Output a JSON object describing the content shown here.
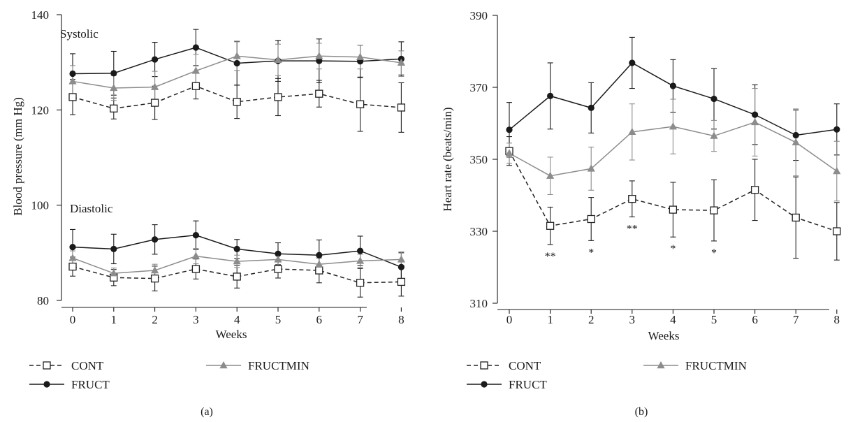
{
  "colors": {
    "CONT": "#222222",
    "FRUCT": "#1a1a1a",
    "FRUCTMIN": "#8c8c8c"
  },
  "legend_labels": {
    "CONT": "CONT",
    "FRUCT": "FRUCT",
    "FRUCTMIN": "FRUCTMIN"
  },
  "chart_data": [
    {
      "type": "line",
      "panel_label": "(a)",
      "xlabel": "Weeks",
      "ylabel": "Blood pressure (mm Hg)",
      "x": [
        0,
        1,
        2,
        3,
        4,
        5,
        6,
        7,
        8
      ],
      "xticks": [
        "0",
        "1",
        "2",
        "3",
        "4",
        "5",
        "6",
        "7",
        "8"
      ],
      "ylim": [
        80,
        140
      ],
      "yticks": [
        80,
        100,
        120,
        140
      ],
      "annotations": [
        "Systolic",
        "Diastolic"
      ],
      "legend_position": "bottom",
      "series": [
        {
          "name": "CONT",
          "group": "Systolic",
          "marker": "open-square",
          "dash": "dashed",
          "values": [
            122.7,
            120.3,
            121.5,
            125.0,
            121.7,
            122.7,
            123.4,
            121.2,
            120.5
          ],
          "err": [
            3.7,
            2.2,
            3.5,
            2.7,
            3.5,
            3.9,
            2.8,
            5.7,
            5.2
          ]
        },
        {
          "name": "FRUCT",
          "group": "Systolic",
          "marker": "filled-circle",
          "dash": "solid",
          "values": [
            127.6,
            127.7,
            130.6,
            133.1,
            129.8,
            130.3,
            130.3,
            130.2,
            130.7
          ],
          "err": [
            4.2,
            4.6,
            3.6,
            3.8,
            4.6,
            4.3,
            4.6,
            3.4,
            3.6
          ]
        },
        {
          "name": "FRUCTMIN",
          "group": "Systolic",
          "marker": "filled-triangle",
          "dash": "solid",
          "values": [
            126.0,
            124.6,
            124.8,
            128.2,
            131.3,
            130.5,
            131.3,
            131.1,
            129.9
          ],
          "err": [
            3.3,
            2.6,
            3.3,
            3.5,
            3.0,
            3.3,
            2.7,
            2.5,
            2.5
          ]
        },
        {
          "name": "CONT",
          "group": "Diastolic",
          "marker": "open-square",
          "dash": "dashed",
          "values": [
            87.1,
            84.8,
            84.6,
            86.6,
            85.0,
            86.6,
            86.3,
            83.7,
            83.9
          ],
          "err": [
            2.0,
            1.7,
            2.6,
            2.1,
            2.4,
            1.9,
            2.6,
            3.0,
            3.0
          ]
        },
        {
          "name": "FRUCT",
          "group": "Diastolic",
          "marker": "filled-circle",
          "dash": "solid",
          "values": [
            91.2,
            90.8,
            92.8,
            93.7,
            90.8,
            89.8,
            89.5,
            90.4,
            87.0
          ],
          "err": [
            3.7,
            3.1,
            3.1,
            3.0,
            2.0,
            2.3,
            3.2,
            3.1,
            3.0
          ]
        },
        {
          "name": "FRUCTMIN",
          "group": "Diastolic",
          "marker": "filled-triangle",
          "dash": "solid",
          "values": [
            88.9,
            85.7,
            86.3,
            89.3,
            88.2,
            88.6,
            87.6,
            88.3,
            88.6
          ],
          "err": [
            1.5,
            1.1,
            1.3,
            1.6,
            1.3,
            1.4,
            1.3,
            1.4,
            1.6
          ]
        }
      ]
    },
    {
      "type": "line",
      "panel_label": "(b)",
      "xlabel": "Weeks",
      "ylabel": "Heart rate (beats/min)",
      "x": [
        0,
        1,
        2,
        3,
        4,
        5,
        6,
        7,
        8
      ],
      "xticks": [
        "0",
        "1",
        "2",
        "3",
        "4",
        "5",
        "6",
        "7",
        "8"
      ],
      "ylim": [
        310,
        390
      ],
      "yticks": [
        310,
        330,
        350,
        370,
        390
      ],
      "legend_position": "bottom",
      "significance": [
        {
          "x": 1,
          "label": "**"
        },
        {
          "x": 2,
          "label": "*"
        },
        {
          "x": 3,
          "label": "**"
        },
        {
          "x": 4,
          "label": "*"
        },
        {
          "x": 5,
          "label": "*"
        }
      ],
      "series": [
        {
          "name": "CONT",
          "marker": "open-square",
          "dash": "dashed",
          "values": [
            352.3,
            331.5,
            333.4,
            339.0,
            336.0,
            335.8,
            341.5,
            333.8,
            330.0
          ],
          "err": [
            4.0,
            5.2,
            6.0,
            5.0,
            7.6,
            8.5,
            8.5,
            11.3,
            8.0
          ]
        },
        {
          "name": "FRUCT",
          "marker": "filled-circle",
          "dash": "solid",
          "values": [
            358.2,
            367.6,
            364.3,
            376.8,
            370.4,
            366.8,
            362.4,
            356.7,
            358.3
          ],
          "err": [
            7.6,
            9.2,
            7.0,
            7.1,
            7.3,
            8.4,
            8.3,
            7.0,
            7.1
          ]
        },
        {
          "name": "FRUCTMIN",
          "marker": "filled-triangle",
          "dash": "solid",
          "values": [
            351.7,
            345.4,
            347.4,
            357.6,
            359.1,
            356.5,
            360.3,
            354.7,
            346.7
          ],
          "err": [
            2.8,
            5.2,
            6.0,
            7.8,
            7.6,
            4.3,
            9.4,
            9.3,
            8.3
          ]
        }
      ]
    }
  ]
}
